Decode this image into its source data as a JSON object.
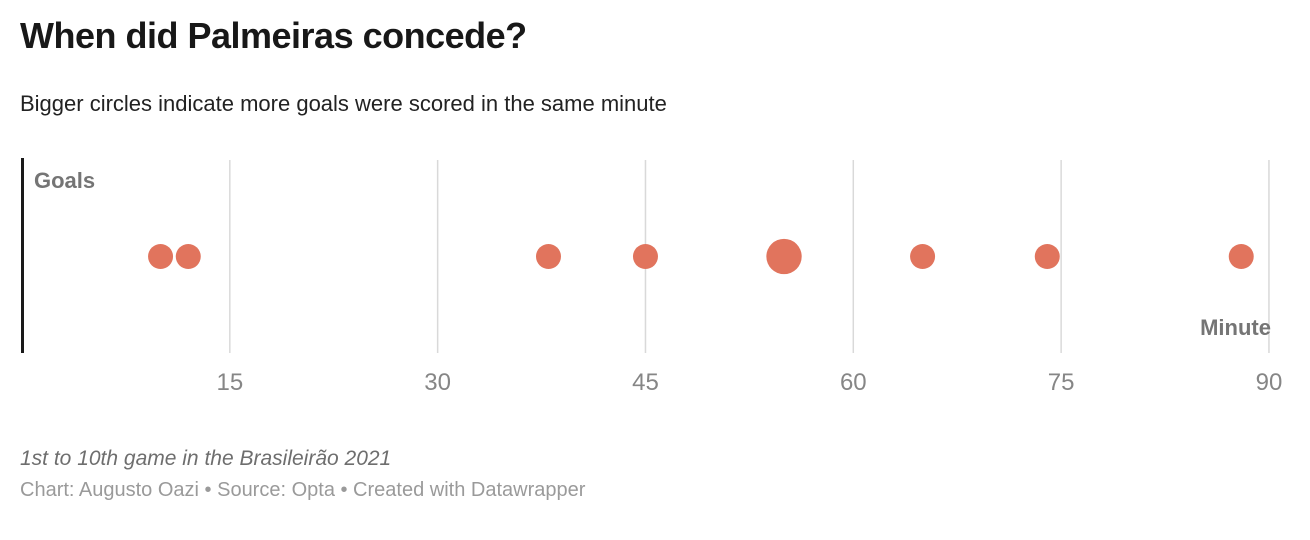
{
  "header": {
    "title": "When did Palmeiras concede?",
    "subtitle": "Bigger circles indicate more goals were scored in the same minute"
  },
  "chart_data": {
    "type": "scatter",
    "title": "When did Palmeiras concede?",
    "subtitle": "Bigger circles indicate more goals were scored in the same minute",
    "xlabel": "Minute",
    "ylabel": "Goals",
    "xlim": [
      0,
      91.5
    ],
    "x_ticks": [
      15,
      30,
      45,
      60,
      75,
      90
    ],
    "grid": true,
    "legend": "none",
    "size_encoding": "circle area proportional to goals conceded in that minute",
    "points": [
      {
        "minute": 10,
        "goals": 1
      },
      {
        "minute": 12,
        "goals": 1
      },
      {
        "minute": 38,
        "goals": 1
      },
      {
        "minute": 45,
        "goals": 1
      },
      {
        "minute": 55,
        "goals": 2
      },
      {
        "minute": 65,
        "goals": 1
      },
      {
        "minute": 74,
        "goals": 1
      },
      {
        "minute": 88,
        "goals": 1
      }
    ],
    "colors": {
      "dot": "#e1745d",
      "grid": "#d9d9d9",
      "axis_line": "#1a1a1a",
      "axis_label": "#757575",
      "tick_label": "#868686"
    }
  },
  "footer": {
    "note": "1st to 10th game in the Brasileirão 2021",
    "byline": "Chart: Augusto Oazi • Source: Opta • Created with Datawrapper"
  }
}
